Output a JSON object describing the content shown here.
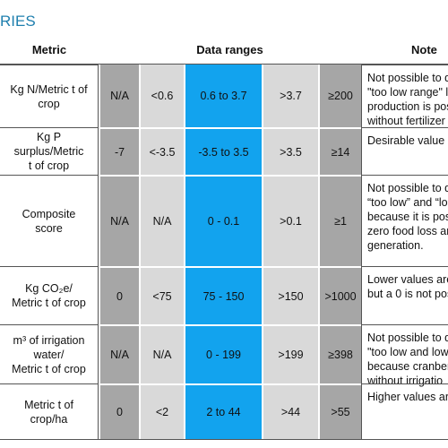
{
  "section_title": "RIES",
  "table": {
    "headers": [
      "Metric",
      "Data ranges",
      "Note"
    ],
    "rows": [
      {
        "metric": [
          "Kg N/Metric t of",
          "crop"
        ],
        "ranges": [
          "N/A",
          "<0.6",
          "0.6 to 3.7",
          ">3.7",
          "≥200"
        ],
        "notes": [
          "Not possible to d",
          "\"too low range\" l",
          "production is pos",
          "without fertilizer"
        ]
      },
      {
        "metric": [
          "Kg P",
          "surplus/Metric",
          "t of crop"
        ],
        "ranges": [
          "-7",
          "<-3.5",
          "-3.5 to 3.5",
          ">3.5",
          "≥14"
        ],
        "notes": [
          "Desirable value is"
        ]
      },
      {
        "metric": [
          "Composite",
          "score"
        ],
        "ranges": [
          "N/A",
          "N/A",
          "0 - 0.1",
          ">0.1",
          "≥1"
        ],
        "notes": [
          "Not possible to d",
          "“too low” and “lo",
          "because it is poss",
          "zero food loss an",
          "generation."
        ]
      },
      {
        "metric": [
          "Kg CO₂e/",
          "Metric t of crop"
        ],
        "ranges": [
          "0",
          "<75",
          "75 - 150",
          ">150",
          ">1000"
        ],
        "notes": [
          "Lower values are",
          "but a 0 is not pos"
        ]
      },
      {
        "metric": [
          "m³ of irrigation",
          "water/",
          "Metric t of crop"
        ],
        "ranges": [
          "N/A",
          "N/A",
          "0 - 199",
          ">199",
          "≥398"
        ],
        "notes": [
          "Not possible to d",
          "\"too low and low",
          "because cranberr",
          "without irrigatio"
        ]
      },
      {
        "metric": [
          "Metric t of",
          "crop/ha"
        ],
        "ranges": [
          "0",
          "<2",
          "2 to 44",
          ">44",
          ">55"
        ],
        "notes": [
          "Higher values are"
        ]
      }
    ]
  }
}
